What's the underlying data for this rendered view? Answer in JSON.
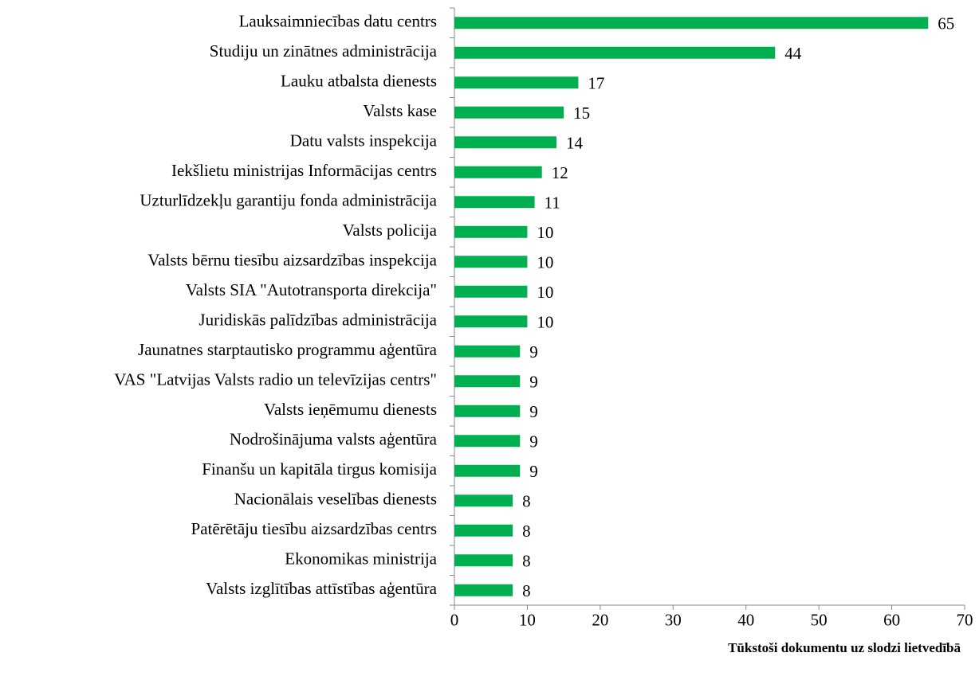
{
  "chart_data": {
    "type": "bar",
    "orientation": "horizontal",
    "x_label": "Tūkstoši dokumentu uz slodzi lietvedībā",
    "categories": [
      "Lauksaimniecības datu centrs",
      "Studiju un zinātnes administrācija",
      "Lauku atbalsta dienests",
      "Valsts kase",
      "Datu valsts inspekcija",
      "Iekšlietu ministrijas Informācijas centrs",
      "Uzturlīdzekļu garantiju fonda administrācija",
      "Valsts policija",
      "Valsts bērnu tiesību aizsardzības inspekcija",
      "Valsts SIA \"Autotransporta direkcija\"",
      "Juridiskās palīdzības administrācija",
      "Jaunatnes starptautisko programmu aģentūra",
      "VAS \"Latvijas Valsts radio un televīzijas centrs\"",
      "Valsts ieņēmumu dienests",
      "Nodrošinājuma valsts aģentūra",
      "Finanšu un kapitāla tirgus komisija",
      "Nacionālais veselības dienests",
      "Patērētāju tiesību aizsardzības centrs",
      "Ekonomikas ministrija",
      "Valsts izglītības attīstības aģentūra"
    ],
    "values": [
      65,
      44,
      17,
      15,
      14,
      12,
      11,
      10,
      10,
      10,
      10,
      9,
      9,
      9,
      9,
      9,
      8,
      8,
      8,
      8
    ],
    "color": "#00b050",
    "xlim": [
      0,
      70
    ],
    "xticks": [
      0,
      10,
      20,
      30,
      40,
      50,
      60,
      70
    ]
  }
}
